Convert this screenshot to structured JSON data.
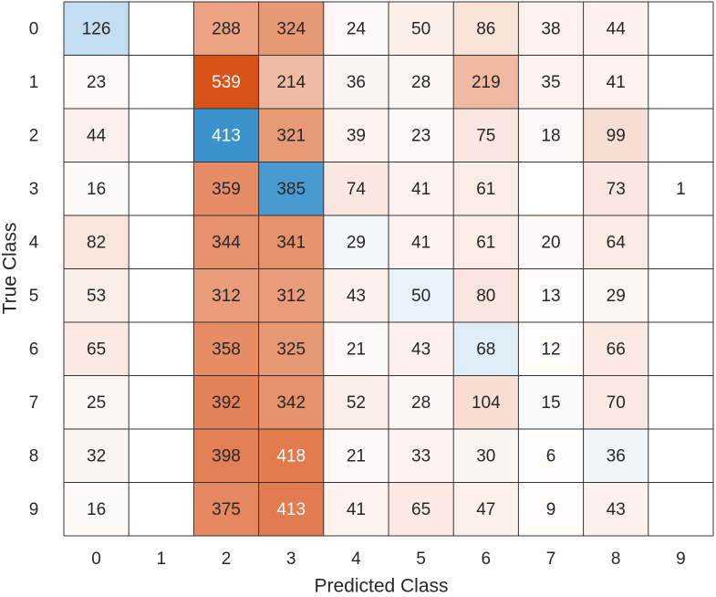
{
  "chart_data": {
    "type": "confusion-matrix",
    "xlabel": "Predicted Class",
    "ylabel": "True Class",
    "classes": [
      "0",
      "1",
      "2",
      "3",
      "4",
      "5",
      "6",
      "7",
      "8",
      "9"
    ],
    "diagonal_color": "#0072BD",
    "off_diagonal_color": "#D95319",
    "matrix": [
      [
        126,
        null,
        288,
        324,
        24,
        50,
        86,
        38,
        44,
        null
      ],
      [
        23,
        null,
        539,
        214,
        36,
        28,
        219,
        35,
        41,
        null
      ],
      [
        44,
        null,
        413,
        321,
        39,
        23,
        75,
        18,
        99,
        null
      ],
      [
        16,
        null,
        359,
        385,
        74,
        41,
        61,
        null,
        73,
        1
      ],
      [
        82,
        null,
        344,
        341,
        29,
        41,
        61,
        20,
        64,
        null
      ],
      [
        53,
        null,
        312,
        312,
        43,
        50,
        80,
        13,
        29,
        null
      ],
      [
        65,
        null,
        358,
        325,
        21,
        43,
        68,
        12,
        66,
        null
      ],
      [
        25,
        null,
        392,
        342,
        52,
        28,
        104,
        15,
        70,
        null
      ],
      [
        32,
        null,
        398,
        418,
        21,
        33,
        30,
        6,
        36,
        null
      ],
      [
        16,
        null,
        375,
        413,
        41,
        65,
        47,
        9,
        43,
        null
      ]
    ]
  }
}
